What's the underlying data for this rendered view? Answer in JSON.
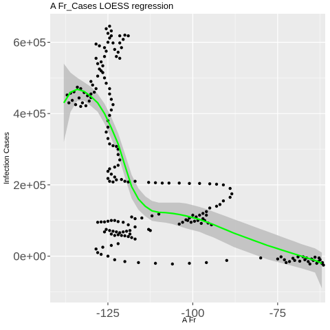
{
  "chart_data": {
    "type": "scatter",
    "title": "A Fr_Cases LOESS regression",
    "xlabel": "A Fr",
    "ylabel": "Infection Cases",
    "xlim": [
      -142,
      -61
    ],
    "ylim": [
      -130000,
      680000
    ],
    "x_ticks": [
      -125,
      -100,
      -75
    ],
    "x_tick_labels": [
      "-125",
      "-100",
      "-75"
    ],
    "y_ticks": [
      0,
      200000,
      400000,
      600000
    ],
    "y_tick_labels": [
      "0e+00",
      "2e+05",
      "4e+05",
      "6e+05"
    ],
    "grid": true,
    "background": "#ebebeb",
    "grid_color": "#ffffff",
    "point_color": "#000000",
    "line_color": "#00ff00",
    "band_color": "#bdbdbd",
    "points": [
      [
        -134,
        474000
      ],
      [
        -135,
        461000
      ],
      [
        -136,
        457000
      ],
      [
        -137,
        452000
      ],
      [
        -133,
        470000
      ],
      [
        -132,
        459000
      ],
      [
        -131,
        450000
      ],
      [
        -130,
        445000
      ],
      [
        -130.5,
        435000
      ],
      [
        -133.5,
        444000
      ],
      [
        -135.5,
        437000
      ],
      [
        -136.5,
        430000
      ],
      [
        -132.5,
        430000
      ],
      [
        -134.5,
        425000
      ],
      [
        -133,
        420000
      ],
      [
        -131.5,
        422000
      ],
      [
        -130,
        455000
      ],
      [
        -129,
        460000
      ],
      [
        -128.5,
        470000
      ],
      [
        -129.5,
        480000
      ],
      [
        -130,
        490000
      ],
      [
        -128,
        505000
      ],
      [
        -127.5,
        525000
      ],
      [
        -126.5,
        534000
      ],
      [
        -127,
        545000
      ],
      [
        -126,
        560000
      ],
      [
        -125.5,
        575000
      ],
      [
        -126,
        585000
      ],
      [
        -127.5,
        590000
      ],
      [
        -128.5,
        595000
      ],
      [
        -125,
        600000
      ],
      [
        -124.5,
        612000
      ],
      [
        -125,
        625000
      ],
      [
        -125.5,
        638000
      ],
      [
        -124.5,
        645000
      ],
      [
        -124,
        632000
      ],
      [
        -124,
        618000
      ],
      [
        -123.5,
        598000
      ],
      [
        -123,
        580000
      ],
      [
        -122.5,
        560000
      ],
      [
        -121.5,
        555000
      ],
      [
        -122,
        572000
      ],
      [
        -121,
        585000
      ],
      [
        -121.5,
        598000
      ],
      [
        -120.5,
        608000
      ],
      [
        -121.5,
        618000
      ],
      [
        -120,
        620000
      ],
      [
        -119,
        618000
      ],
      [
        -128.5,
        555000
      ],
      [
        -128,
        540000
      ],
      [
        -127,
        520000
      ],
      [
        -126.5,
        515000
      ],
      [
        -126,
        500000
      ],
      [
        -125.5,
        485000
      ],
      [
        -124.5,
        470000
      ],
      [
        -124.5,
        455000
      ],
      [
        -124,
        440000
      ],
      [
        -123.5,
        425000
      ],
      [
        -124,
        410000
      ],
      [
        -124.5,
        395000
      ],
      [
        -125,
        380000
      ],
      [
        -125,
        362000
      ],
      [
        -125.5,
        348000
      ],
      [
        -125,
        330000
      ],
      [
        -124.5,
        315000
      ],
      [
        -123.5,
        310000
      ],
      [
        -122.5,
        308000
      ],
      [
        -122,
        300000
      ],
      [
        -122,
        285000
      ],
      [
        -121.5,
        270000
      ],
      [
        -122,
        255000
      ],
      [
        -123,
        250000
      ],
      [
        -124.5,
        245000
      ],
      [
        -125,
        238000
      ],
      [
        -124,
        230000
      ],
      [
        -123,
        222000
      ],
      [
        -122.5,
        214000
      ],
      [
        -123.5,
        208000
      ],
      [
        -124.5,
        210000
      ],
      [
        -125,
        218000
      ],
      [
        -121,
        215000
      ],
      [
        -120,
        210000
      ],
      [
        -119,
        208000
      ],
      [
        -117,
        210000
      ],
      [
        -113,
        207000
      ],
      [
        -111,
        206000
      ],
      [
        -109,
        205000
      ],
      [
        -107,
        205000
      ],
      [
        -104,
        205000
      ],
      [
        -101,
        204000
      ],
      [
        -98,
        204000
      ],
      [
        -95,
        203000
      ],
      [
        -93,
        202000
      ],
      [
        -91,
        200000
      ],
      [
        -89,
        190000
      ],
      [
        -88.5,
        175000
      ],
      [
        -89,
        165000
      ],
      [
        -91,
        155000
      ],
      [
        -92,
        145000
      ],
      [
        -93,
        140000
      ],
      [
        -95,
        135000
      ],
      [
        -96,
        125000
      ],
      [
        -97,
        120000
      ],
      [
        -98,
        115000
      ],
      [
        -99,
        110000
      ],
      [
        -100,
        115000
      ],
      [
        -101,
        107000
      ],
      [
        -102,
        102000
      ],
      [
        -103,
        95000
      ],
      [
        -104,
        90000
      ],
      [
        -101.5,
        100000
      ],
      [
        -100.5,
        95000
      ],
      [
        -99.5,
        98000
      ],
      [
        -98.5,
        100000
      ],
      [
        -97.5,
        92000
      ],
      [
        -96.5,
        100000
      ],
      [
        -95.5,
        93000
      ],
      [
        -94.5,
        88000
      ],
      [
        -97,
        105000
      ],
      [
        -96,
        115000
      ],
      [
        -110,
        118000
      ],
      [
        -112,
        113000
      ],
      [
        -115,
        107000
      ],
      [
        -117,
        105000
      ],
      [
        -118,
        110000
      ],
      [
        -113,
        75000
      ],
      [
        -112.5,
        72000
      ],
      [
        -117,
        82000
      ],
      [
        -119,
        88000
      ],
      [
        -120.5,
        95000
      ],
      [
        -122,
        97000
      ],
      [
        -123,
        100000
      ],
      [
        -124,
        100000
      ],
      [
        -125,
        98000
      ],
      [
        -126,
        96000
      ],
      [
        -127,
        96000
      ],
      [
        -128,
        95000
      ],
      [
        -125.5,
        75000
      ],
      [
        -124.5,
        72000
      ],
      [
        -123.5,
        70000
      ],
      [
        -122.5,
        68000
      ],
      [
        -121.5,
        66000
      ],
      [
        -120.5,
        68000
      ],
      [
        -119.5,
        70000
      ],
      [
        -118.5,
        72000
      ],
      [
        -122,
        60000
      ],
      [
        -121,
        58000
      ],
      [
        -120,
        57000
      ],
      [
        -119,
        55000
      ],
      [
        -118,
        52000
      ],
      [
        -117,
        48000
      ],
      [
        -118.5,
        62000
      ],
      [
        -124,
        62000
      ],
      [
        -123,
        58000
      ],
      [
        -126,
        68000
      ],
      [
        -122,
        35000
      ],
      [
        -124,
        30000
      ],
      [
        -126.5,
        25000
      ],
      [
        -128.5,
        20000
      ],
      [
        -128,
        10000
      ],
      [
        -127,
        5000
      ],
      [
        -125,
        0
      ],
      [
        -123,
        -10000
      ],
      [
        -120,
        -15000
      ],
      [
        -116,
        -18000
      ],
      [
        -111,
        -20000
      ],
      [
        -106,
        -22000
      ],
      [
        -101,
        -20000
      ],
      [
        -96,
        -18000
      ],
      [
        -90,
        -12000
      ],
      [
        -80,
        -5000
      ],
      [
        -75,
        -8000
      ],
      [
        -73,
        -10000
      ],
      [
        -70,
        -12000
      ],
      [
        -69,
        -2000
      ],
      [
        -67,
        -10000
      ],
      [
        -66,
        -15000
      ],
      [
        -65,
        -8000
      ],
      [
        -64,
        -3000
      ],
      [
        -63,
        -15000
      ],
      [
        -62.5,
        -10000
      ],
      [
        -62,
        -20000
      ],
      [
        -61.5,
        -25000
      ],
      [
        -63.5,
        -20000
      ],
      [
        -65.5,
        -22000
      ],
      [
        -66.5,
        -5000
      ],
      [
        -67.5,
        -2000
      ],
      [
        -68.5,
        -14000
      ],
      [
        -70.5,
        -6000
      ],
      [
        -71.5,
        -15000
      ],
      [
        -72.5,
        -18000
      ],
      [
        -74,
        -2000
      ],
      [
        -64.5,
        -12000
      ],
      [
        -62.8,
        -5000
      ],
      [
        -61.8,
        -18000
      ]
    ],
    "loess_fit": [
      [
        -138,
        430000
      ],
      [
        -136,
        460000
      ],
      [
        -134,
        468000
      ],
      [
        -132,
        462000
      ],
      [
        -130,
        448000
      ],
      [
        -128,
        430000
      ],
      [
        -126,
        400000
      ],
      [
        -124,
        360000
      ],
      [
        -122,
        315000
      ],
      [
        -120,
        255000
      ],
      [
        -118,
        195000
      ],
      [
        -116,
        160000
      ],
      [
        -114,
        140000
      ],
      [
        -112,
        127000
      ],
      [
        -110,
        123000
      ],
      [
        -108,
        122000
      ],
      [
        -106,
        120000
      ],
      [
        -104,
        117000
      ],
      [
        -102,
        113000
      ],
      [
        -100,
        108000
      ],
      [
        -98,
        103000
      ],
      [
        -96,
        96000
      ],
      [
        -94,
        89000
      ],
      [
        -92,
        81000
      ],
      [
        -90,
        73000
      ],
      [
        -88,
        65000
      ],
      [
        -86,
        58000
      ],
      [
        -84,
        51000
      ],
      [
        -82,
        44000
      ],
      [
        -80,
        37000
      ],
      [
        -78,
        30000
      ],
      [
        -76,
        24000
      ],
      [
        -74,
        18000
      ],
      [
        -72,
        12000
      ],
      [
        -70,
        6000
      ],
      [
        -68,
        0
      ],
      [
        -66,
        -6000
      ],
      [
        -64,
        -12000
      ],
      [
        -62,
        -20000
      ]
    ],
    "band_upper": [
      [
        -138,
        540000
      ],
      [
        -136,
        515000
      ],
      [
        -134,
        500000
      ],
      [
        -132,
        488000
      ],
      [
        -130,
        475000
      ],
      [
        -128,
        455000
      ],
      [
        -126,
        428000
      ],
      [
        -124,
        390000
      ],
      [
        -122,
        345000
      ],
      [
        -120,
        288000
      ],
      [
        -118,
        228000
      ],
      [
        -116,
        190000
      ],
      [
        -114,
        168000
      ],
      [
        -112,
        155000
      ],
      [
        -110,
        150000
      ],
      [
        -108,
        150000
      ],
      [
        -106,
        150000
      ],
      [
        -104,
        150000
      ],
      [
        -102,
        148000
      ],
      [
        -100,
        143000
      ],
      [
        -98,
        138000
      ],
      [
        -96,
        132000
      ],
      [
        -94,
        125000
      ],
      [
        -92,
        118000
      ],
      [
        -90,
        111000
      ],
      [
        -88,
        104000
      ],
      [
        -86,
        97000
      ],
      [
        -84,
        90000
      ],
      [
        -82,
        83000
      ],
      [
        -80,
        76000
      ],
      [
        -78,
        69000
      ],
      [
        -76,
        62000
      ],
      [
        -74,
        55000
      ],
      [
        -72,
        48000
      ],
      [
        -70,
        41000
      ],
      [
        -68,
        34000
      ],
      [
        -66,
        28000
      ],
      [
        -64,
        22000
      ],
      [
        -62,
        10000
      ]
    ],
    "band_lower": [
      [
        -138,
        320000
      ],
      [
        -136,
        405000
      ],
      [
        -134,
        436000
      ],
      [
        -132,
        436000
      ],
      [
        -130,
        421000
      ],
      [
        -128,
        405000
      ],
      [
        -126,
        372000
      ],
      [
        -124,
        330000
      ],
      [
        -122,
        285000
      ],
      [
        -120,
        222000
      ],
      [
        -118,
        162000
      ],
      [
        -116,
        130000
      ],
      [
        -114,
        112000
      ],
      [
        -112,
        99000
      ],
      [
        -110,
        96000
      ],
      [
        -108,
        94000
      ],
      [
        -106,
        90000
      ],
      [
        -104,
        84000
      ],
      [
        -102,
        78000
      ],
      [
        -100,
        73000
      ],
      [
        -98,
        68000
      ],
      [
        -96,
        60000
      ],
      [
        -94,
        53000
      ],
      [
        -92,
        44000
      ],
      [
        -90,
        35000
      ],
      [
        -88,
        26000
      ],
      [
        -86,
        19000
      ],
      [
        -84,
        12000
      ],
      [
        -82,
        5000
      ],
      [
        -80,
        -2000
      ],
      [
        -78,
        -9000
      ],
      [
        -76,
        -14000
      ],
      [
        -74,
        -19000
      ],
      [
        -72,
        -24000
      ],
      [
        -70,
        -29000
      ],
      [
        -68,
        -34000
      ],
      [
        -66,
        -40000
      ],
      [
        -64,
        -46000
      ],
      [
        -62,
        -90000
      ]
    ]
  }
}
